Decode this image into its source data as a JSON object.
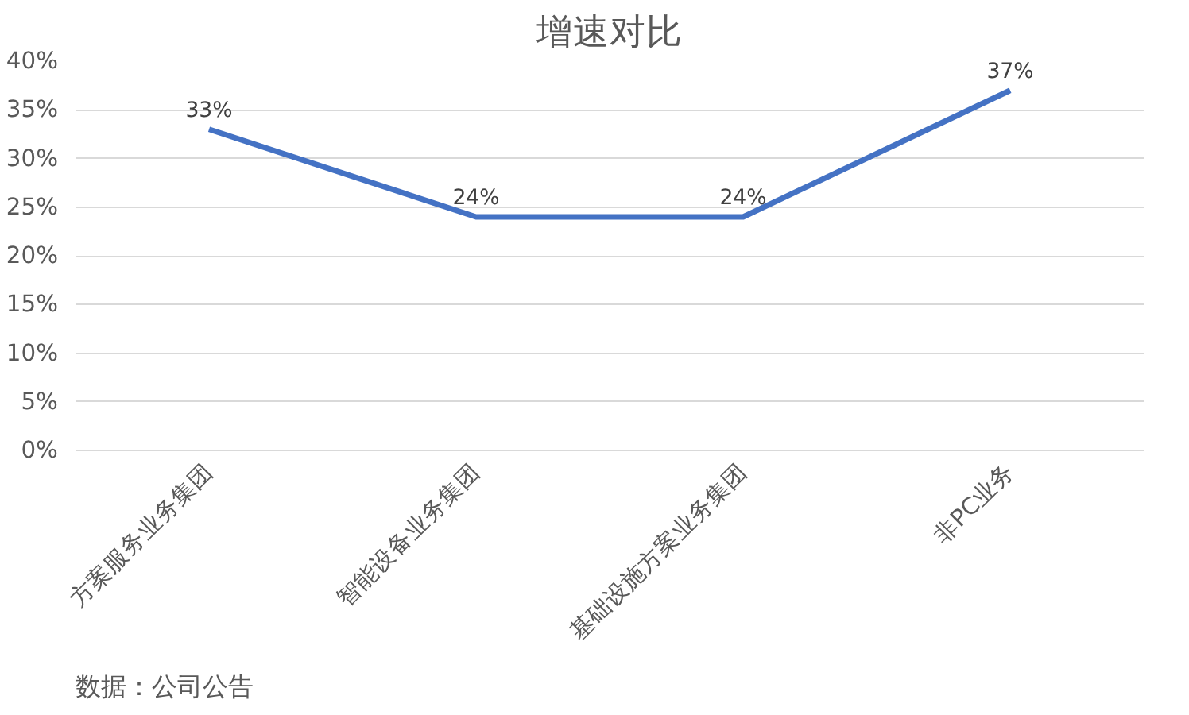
{
  "chart_data": {
    "type": "line",
    "title": "增速对比",
    "categories": [
      "方案服务业务集团",
      "智能设备业务集团",
      "基础设施方案业务集团",
      "非PC业务"
    ],
    "series": [
      {
        "color": "#4472c4",
        "values": [
          33,
          24,
          24,
          37
        ],
        "value_labels": [
          "33%",
          "24%",
          "24%",
          "37%"
        ]
      }
    ],
    "ylim": [
      0,
      40
    ],
    "yticks": [
      {
        "value": 0,
        "label": "0%"
      },
      {
        "value": 5,
        "label": "5%"
      },
      {
        "value": 10,
        "label": "10%"
      },
      {
        "value": 15,
        "label": "15%"
      },
      {
        "value": 20,
        "label": "20%"
      },
      {
        "value": 25,
        "label": "25%"
      },
      {
        "value": 30,
        "label": "30%"
      },
      {
        "value": 35,
        "label": "35%"
      },
      {
        "value": 40,
        "label": "40%"
      }
    ],
    "grid": "y",
    "marker": "none",
    "line_style": "solid",
    "annotations": [
      "数据：公司公告"
    ]
  }
}
